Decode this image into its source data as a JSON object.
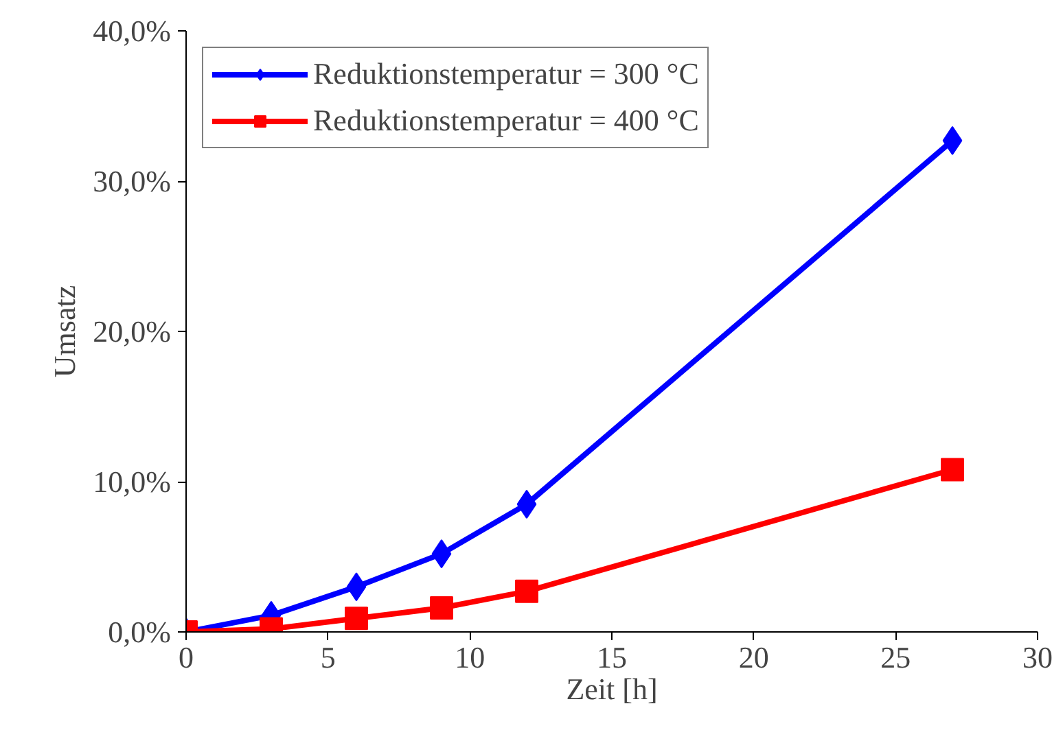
{
  "chart_data": {
    "type": "line",
    "xlabel": "Zeit [h]",
    "ylabel": "Umsatz",
    "x": [
      0,
      3,
      6,
      9,
      12,
      27
    ],
    "series": [
      {
        "name": "Reduktionstemperatur = 300 °C",
        "color": "#0000ff",
        "marker": "diamond",
        "values": [
          0,
          1.1,
          3.0,
          5.2,
          8.5,
          32.7
        ]
      },
      {
        "name": "Reduktionstemperatur = 400 °C",
        "color": "#ff0000",
        "marker": "square",
        "values": [
          0,
          0.2,
          0.9,
          1.6,
          2.7,
          10.8
        ]
      }
    ],
    "xlim": [
      0,
      30
    ],
    "xticks": [
      0,
      5,
      10,
      15,
      20,
      25,
      30
    ],
    "ylim": [
      0,
      40
    ],
    "yticks": [
      {
        "value": 0,
        "label": "0,0%"
      },
      {
        "value": 10,
        "label": "10,0%"
      },
      {
        "value": 20,
        "label": "20,0%"
      },
      {
        "value": 30,
        "label": "30,0%"
      },
      {
        "value": 40,
        "label": "40,0%"
      }
    ],
    "grid": false,
    "legend": "top left",
    "line_style": "solid"
  }
}
